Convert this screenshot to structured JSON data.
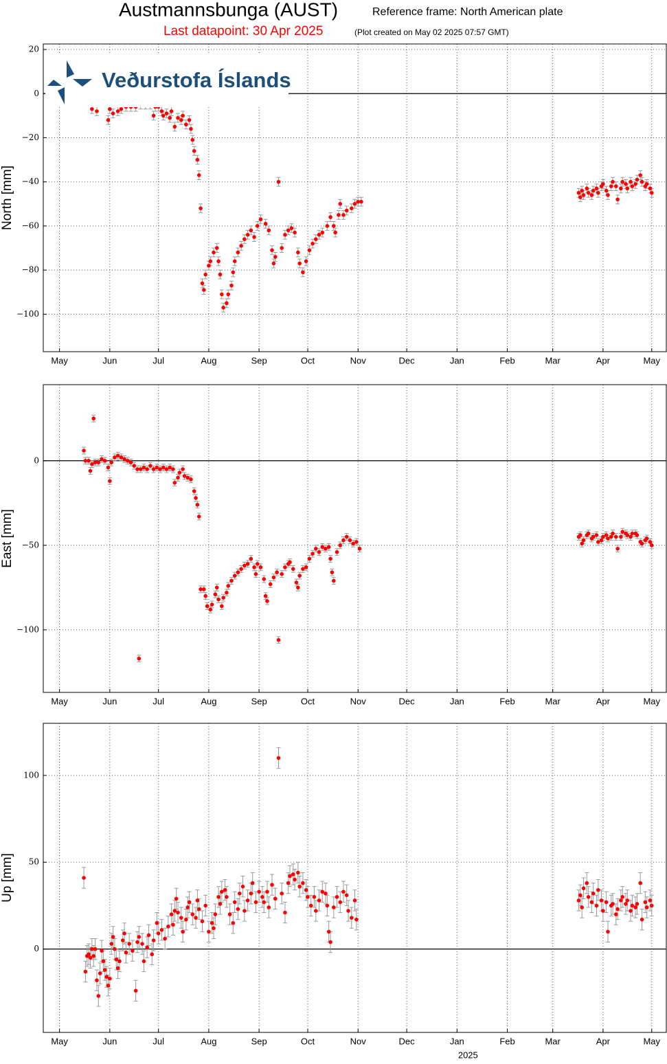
{
  "header": {
    "title": "Austmannsbunga (AUST)",
    "reference": "Reference frame: North American plate",
    "last_datapoint": "Last datapoint: 30 Apr 2025",
    "created": "(Plot created on May 02 2025 07:57 GMT)",
    "logo": "Veðurstofa Íslands"
  },
  "chart_data": [
    {
      "type": "scatter",
      "ylabel": "North [mm]",
      "color": "#ff0000",
      "error": 2,
      "zero_line": true,
      "grid": true,
      "xlim": [
        -10,
        374
      ],
      "ylim": [
        -117,
        22.5
      ],
      "xticks": [
        {
          "value": 0,
          "label": "May"
        },
        {
          "value": 31,
          "label": "Jun"
        },
        {
          "value": 61,
          "label": "Jul"
        },
        {
          "value": 92,
          "label": "Aug"
        },
        {
          "value": 123,
          "label": "Sep"
        },
        {
          "value": 153,
          "label": "Oct"
        },
        {
          "value": 184,
          "label": "Nov"
        },
        {
          "value": 214,
          "label": "Dec"
        },
        {
          "value": 245,
          "label": "Jan"
        },
        {
          "value": 276,
          "label": "Feb"
        },
        {
          "value": 304,
          "label": "Mar"
        },
        {
          "value": 335,
          "label": "Apr"
        },
        {
          "value": 365,
          "label": "May"
        }
      ],
      "yticks": [
        {
          "value": -100,
          "label": "−100"
        },
        {
          "value": -80,
          "label": "−80"
        },
        {
          "value": -60,
          "label": "−60"
        },
        {
          "value": -40,
          "label": "−40"
        },
        {
          "value": -20,
          "label": "−20"
        },
        0,
        20
      ],
      "x": [
        20,
        23,
        30,
        31,
        33,
        36,
        38,
        41,
        44,
        47,
        50,
        53,
        56,
        58,
        59,
        61,
        63,
        64,
        66,
        68,
        69,
        71,
        73,
        75,
        76,
        78,
        80,
        81,
        82,
        83,
        85,
        86,
        87,
        88,
        89,
        90,
        92,
        93,
        95,
        97,
        98,
        99,
        100,
        101,
        103,
        104,
        106,
        107,
        108,
        110,
        112,
        114,
        116,
        118,
        120,
        122,
        124,
        127,
        129,
        131,
        132,
        133,
        135,
        137,
        139,
        141,
        143,
        145,
        147,
        148,
        150,
        152,
        154,
        156,
        158,
        160,
        162,
        165,
        167,
        169,
        170,
        172,
        173,
        175,
        177,
        180,
        182,
        184,
        186,
        320,
        321,
        322,
        323,
        325,
        326,
        328,
        329,
        331,
        332,
        334,
        335,
        337,
        338,
        340,
        341,
        343,
        344,
        346,
        347,
        349,
        350,
        352,
        353,
        355,
        356,
        358,
        359,
        361,
        362,
        364,
        365
      ],
      "values": [
        -7,
        -8,
        -12,
        -7,
        -9,
        -8,
        -7,
        -6,
        -6,
        -6,
        -5,
        -5,
        -5,
        -10,
        -6,
        -6,
        -8,
        -10,
        -9,
        -11,
        -8,
        -15,
        -11,
        -12,
        -10,
        -14,
        -12,
        -16,
        -21,
        -26,
        -30,
        -37,
        -52,
        -86,
        -89,
        -82,
        -78,
        -76,
        -72,
        -70,
        -76,
        -82,
        -91,
        -97,
        -95,
        -91,
        -87,
        -81,
        -76,
        -72,
        -69,
        -66,
        -64,
        -62,
        -65,
        -60,
        -57,
        -59,
        -62,
        -71,
        -77,
        -74,
        -40,
        -70,
        -64,
        -62,
        -61,
        -63,
        -72,
        -77,
        -81,
        -76,
        -71,
        -68,
        -66,
        -64,
        -63,
        -60,
        -56,
        -60,
        -63,
        -55,
        -50,
        -55,
        -53,
        -52,
        -50,
        -49,
        -49,
        -45,
        -47,
        -44,
        -46,
        -43,
        -45,
        -46,
        -44,
        -43,
        -45,
        -42,
        -41,
        -44,
        -46,
        -42,
        -40,
        -42,
        -48,
        -43,
        -40,
        -41,
        -43,
        -40,
        -42,
        -41,
        -39,
        -37,
        -40,
        -42,
        -41,
        -43,
        -45
      ]
    },
    {
      "type": "scatter",
      "ylabel": "East [mm]",
      "color": "#ff0000",
      "error": 2,
      "zero_line": true,
      "grid": true,
      "xlim": [
        -10,
        374
      ],
      "ylim": [
        -137,
        45
      ],
      "xticks": [
        {
          "value": 0,
          "label": "May"
        },
        {
          "value": 31,
          "label": "Jun"
        },
        {
          "value": 61,
          "label": "Jul"
        },
        {
          "value": 92,
          "label": "Aug"
        },
        {
          "value": 123,
          "label": "Sep"
        },
        {
          "value": 153,
          "label": "Oct"
        },
        {
          "value": 184,
          "label": "Nov"
        },
        {
          "value": 214,
          "label": "Dec"
        },
        {
          "value": 245,
          "label": "Jan"
        },
        {
          "value": 276,
          "label": "Feb"
        },
        {
          "value": 304,
          "label": "Mar"
        },
        {
          "value": 335,
          "label": "Apr"
        },
        {
          "value": 365,
          "label": "May"
        }
      ],
      "yticks": [
        {
          "value": -100,
          "label": "−100"
        },
        {
          "value": -50,
          "label": "−50"
        },
        0
      ],
      "x": [
        15,
        16,
        18,
        19,
        20,
        21,
        22,
        24,
        26,
        28,
        30,
        31,
        32,
        34,
        36,
        38,
        40,
        42,
        44,
        46,
        48,
        49,
        50,
        52,
        54,
        56,
        58,
        60,
        62,
        64,
        66,
        68,
        70,
        71,
        73,
        74,
        76,
        77,
        79,
        81,
        83,
        84,
        85,
        86,
        87,
        89,
        90,
        91,
        93,
        94,
        96,
        97,
        98,
        100,
        101,
        103,
        104,
        106,
        108,
        110,
        112,
        114,
        116,
        118,
        120,
        121,
        122,
        124,
        126,
        127,
        128,
        130,
        132,
        134,
        135,
        137,
        139,
        141,
        142,
        144,
        146,
        147,
        148,
        150,
        152,
        154,
        156,
        158,
        160,
        162,
        164,
        166,
        167,
        168,
        169,
        171,
        173,
        175,
        177,
        179,
        181,
        183,
        185,
        320,
        321,
        322,
        323,
        325,
        326,
        328,
        329,
        331,
        332,
        334,
        335,
        337,
        338,
        340,
        341,
        343,
        344,
        346,
        347,
        349,
        350,
        352,
        353,
        355,
        356,
        358,
        359,
        361,
        362,
        364,
        365
      ],
      "values": [
        6,
        0,
        0,
        -6,
        -2,
        25,
        -1,
        -1,
        1,
        0,
        -4,
        -12,
        -1,
        2,
        3,
        2,
        1,
        0,
        -1,
        -3,
        -5,
        -117,
        -5,
        -4,
        -5,
        -3,
        -5,
        -4,
        -5,
        -4,
        -5,
        -4,
        -5,
        -13,
        -10,
        -7,
        -5,
        -9,
        -10,
        -11,
        -18,
        -22,
        -26,
        -33,
        -76,
        -76,
        -80,
        -86,
        -88,
        -85,
        -79,
        -75,
        -82,
        -86,
        -81,
        -78,
        -74,
        -71,
        -68,
        -66,
        -64,
        -62,
        -61,
        -58,
        -63,
        -67,
        -61,
        -63,
        -70,
        -80,
        -83,
        -73,
        -69,
        -66,
        -106,
        -67,
        -63,
        -61,
        -60,
        -64,
        -72,
        -75,
        -68,
        -64,
        -63,
        -58,
        -55,
        -52,
        -54,
        -51,
        -52,
        -51,
        -58,
        -66,
        -71,
        -54,
        -50,
        -47,
        -45,
        -47,
        -49,
        -48,
        -52,
        -45,
        -44,
        -49,
        -47,
        -44,
        -43,
        -46,
        -45,
        -44,
        -48,
        -47,
        -45,
        -44,
        -46,
        -45,
        -43,
        -45,
        -52,
        -45,
        -42,
        -43,
        -44,
        -45,
        -43,
        -43,
        -44,
        -48,
        -49,
        -47,
        -46,
        -48,
        -50
      ]
    },
    {
      "type": "scatter",
      "ylabel": "Up [mm]",
      "color": "#ff0000",
      "error": 6,
      "zero_line": true,
      "grid": true,
      "xlabel": "2025",
      "xlim": [
        -10,
        374
      ],
      "ylim": [
        -48,
        130
      ],
      "xticks": [
        {
          "value": 0,
          "label": "May"
        },
        {
          "value": 31,
          "label": "Jun"
        },
        {
          "value": 61,
          "label": "Jul"
        },
        {
          "value": 92,
          "label": "Aug"
        },
        {
          "value": 123,
          "label": "Sep"
        },
        {
          "value": 153,
          "label": "Oct"
        },
        {
          "value": 184,
          "label": "Nov"
        },
        {
          "value": 214,
          "label": "Dec"
        },
        {
          "value": 245,
          "label": "Jan"
        },
        {
          "value": 276,
          "label": "Feb"
        },
        {
          "value": 304,
          "label": "Mar"
        },
        {
          "value": 335,
          "label": "Apr"
        },
        {
          "value": 365,
          "label": "May"
        }
      ],
      "yticks": [
        0,
        50,
        100
      ],
      "x": [
        15,
        16,
        17,
        18,
        19,
        20,
        21,
        22,
        23,
        24,
        25,
        26,
        27,
        28,
        29,
        30,
        31,
        32,
        33,
        34,
        35,
        36,
        37,
        39,
        40,
        41,
        43,
        45,
        47,
        48,
        49,
        51,
        52,
        54,
        55,
        57,
        58,
        60,
        61,
        63,
        65,
        67,
        69,
        70,
        71,
        72,
        73,
        75,
        76,
        78,
        79,
        80,
        82,
        84,
        85,
        86,
        88,
        90,
        92,
        94,
        95,
        96,
        98,
        99,
        100,
        102,
        103,
        105,
        107,
        108,
        110,
        111,
        113,
        114,
        116,
        118,
        119,
        121,
        123,
        125,
        126,
        128,
        129,
        131,
        133,
        135,
        137,
        139,
        141,
        142,
        144,
        145,
        147,
        148,
        150,
        152,
        153,
        155,
        157,
        158,
        160,
        162,
        164,
        165,
        166,
        167,
        169,
        171,
        173,
        175,
        177,
        178,
        180,
        182,
        183,
        320,
        321,
        322,
        323,
        325,
        326,
        328,
        329,
        331,
        332,
        334,
        335,
        337,
        338,
        340,
        341,
        343,
        344,
        346,
        347,
        349,
        350,
        352,
        353,
        355,
        356,
        358,
        359,
        361,
        362,
        364,
        365
      ],
      "values": [
        41,
        -13,
        -4,
        -3,
        -5,
        0,
        -4,
        0,
        -18,
        -27,
        -14,
        -1,
        -7,
        -12,
        -16,
        -21,
        -17,
        3,
        7,
        0,
        -6,
        -11,
        -7,
        5,
        9,
        -2,
        3,
        -1,
        -24,
        4,
        7,
        3,
        -7,
        1,
        8,
        -3,
        5,
        15,
        9,
        11,
        6,
        13,
        20,
        14,
        22,
        29,
        21,
        18,
        10,
        17,
        24,
        27,
        20,
        18,
        28,
        23,
        16,
        25,
        10,
        15,
        12,
        20,
        30,
        26,
        33,
        34,
        30,
        20,
        15,
        27,
        23,
        32,
        36,
        22,
        28,
        32,
        38,
        27,
        33,
        30,
        27,
        33,
        24,
        37,
        29,
        110,
        32,
        21,
        38,
        42,
        43,
        40,
        44,
        36,
        38,
        34,
        30,
        25,
        30,
        22,
        28,
        33,
        32,
        25,
        10,
        4,
        24,
        30,
        27,
        33,
        31,
        22,
        18,
        28,
        17,
        28,
        31,
        24,
        35,
        38,
        30,
        27,
        32,
        25,
        34,
        28,
        22,
        27,
        10,
        25,
        26,
        20,
        23,
        28,
        30,
        26,
        28,
        22,
        25,
        24,
        26,
        38,
        17,
        27,
        24,
        28,
        25
      ]
    }
  ]
}
